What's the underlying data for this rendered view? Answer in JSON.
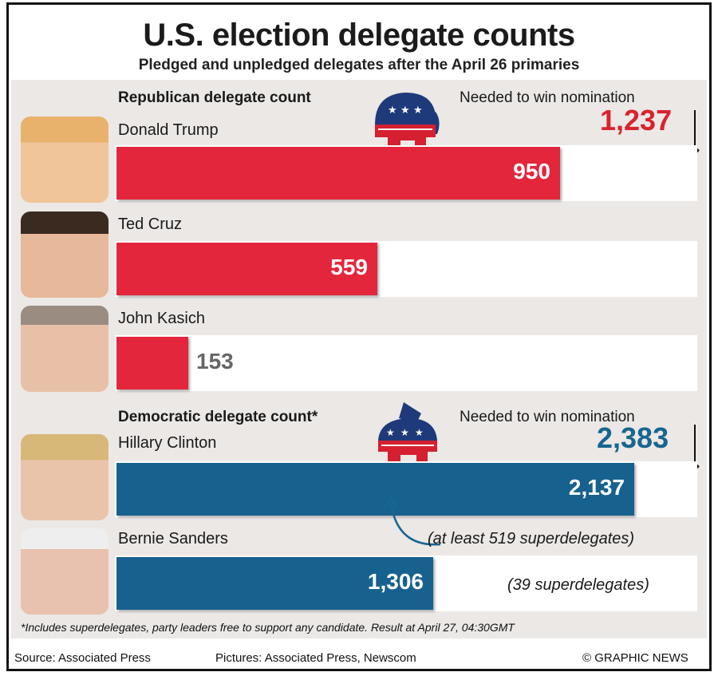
{
  "title": "U.S. election delegate counts",
  "subtitle": "Pledged and unpledged delegates after the April 26 primaries",
  "colors": {
    "republican": "#e3263c",
    "democratic": "#17618f",
    "republican_text": "#d9232f",
    "democratic_text": "#18668f"
  },
  "chart_data": [
    {
      "type": "bar",
      "title": "Republican delegate count",
      "target_label": "Needed to win nomination",
      "target_value": 1237,
      "target_display": "1,237",
      "categories": [
        "Donald Trump",
        "Ted Cruz",
        "John Kasich"
      ],
      "values": [
        950,
        559,
        153
      ],
      "value_labels": [
        "950",
        "559",
        "153"
      ],
      "xlim": [
        0,
        1237
      ]
    },
    {
      "type": "bar",
      "title": "Democratic delegate count*",
      "target_label": "Needed to win nomination",
      "target_value": 2383,
      "target_display": "2,383",
      "categories": [
        "Hillary Clinton",
        "Bernie Sanders"
      ],
      "values": [
        2137,
        1306
      ],
      "value_labels": [
        "2,137",
        "1,306"
      ],
      "notes": [
        "(at least 519 superdelegates)",
        "(39 superdelegates)"
      ],
      "xlim": [
        0,
        2383
      ]
    }
  ],
  "icons": {
    "republican": "elephant-icon",
    "democratic": "donkey-icon",
    "copyright": "copyright-icon"
  },
  "footnote": "*Includes superdelegates, party leaders free to support any candidate. Result at April 27, 04:30GMT",
  "source": "Source: Associated Press",
  "pictures": "Pictures: Associated Press, Newscom",
  "credit": "GRAPHIC NEWS"
}
